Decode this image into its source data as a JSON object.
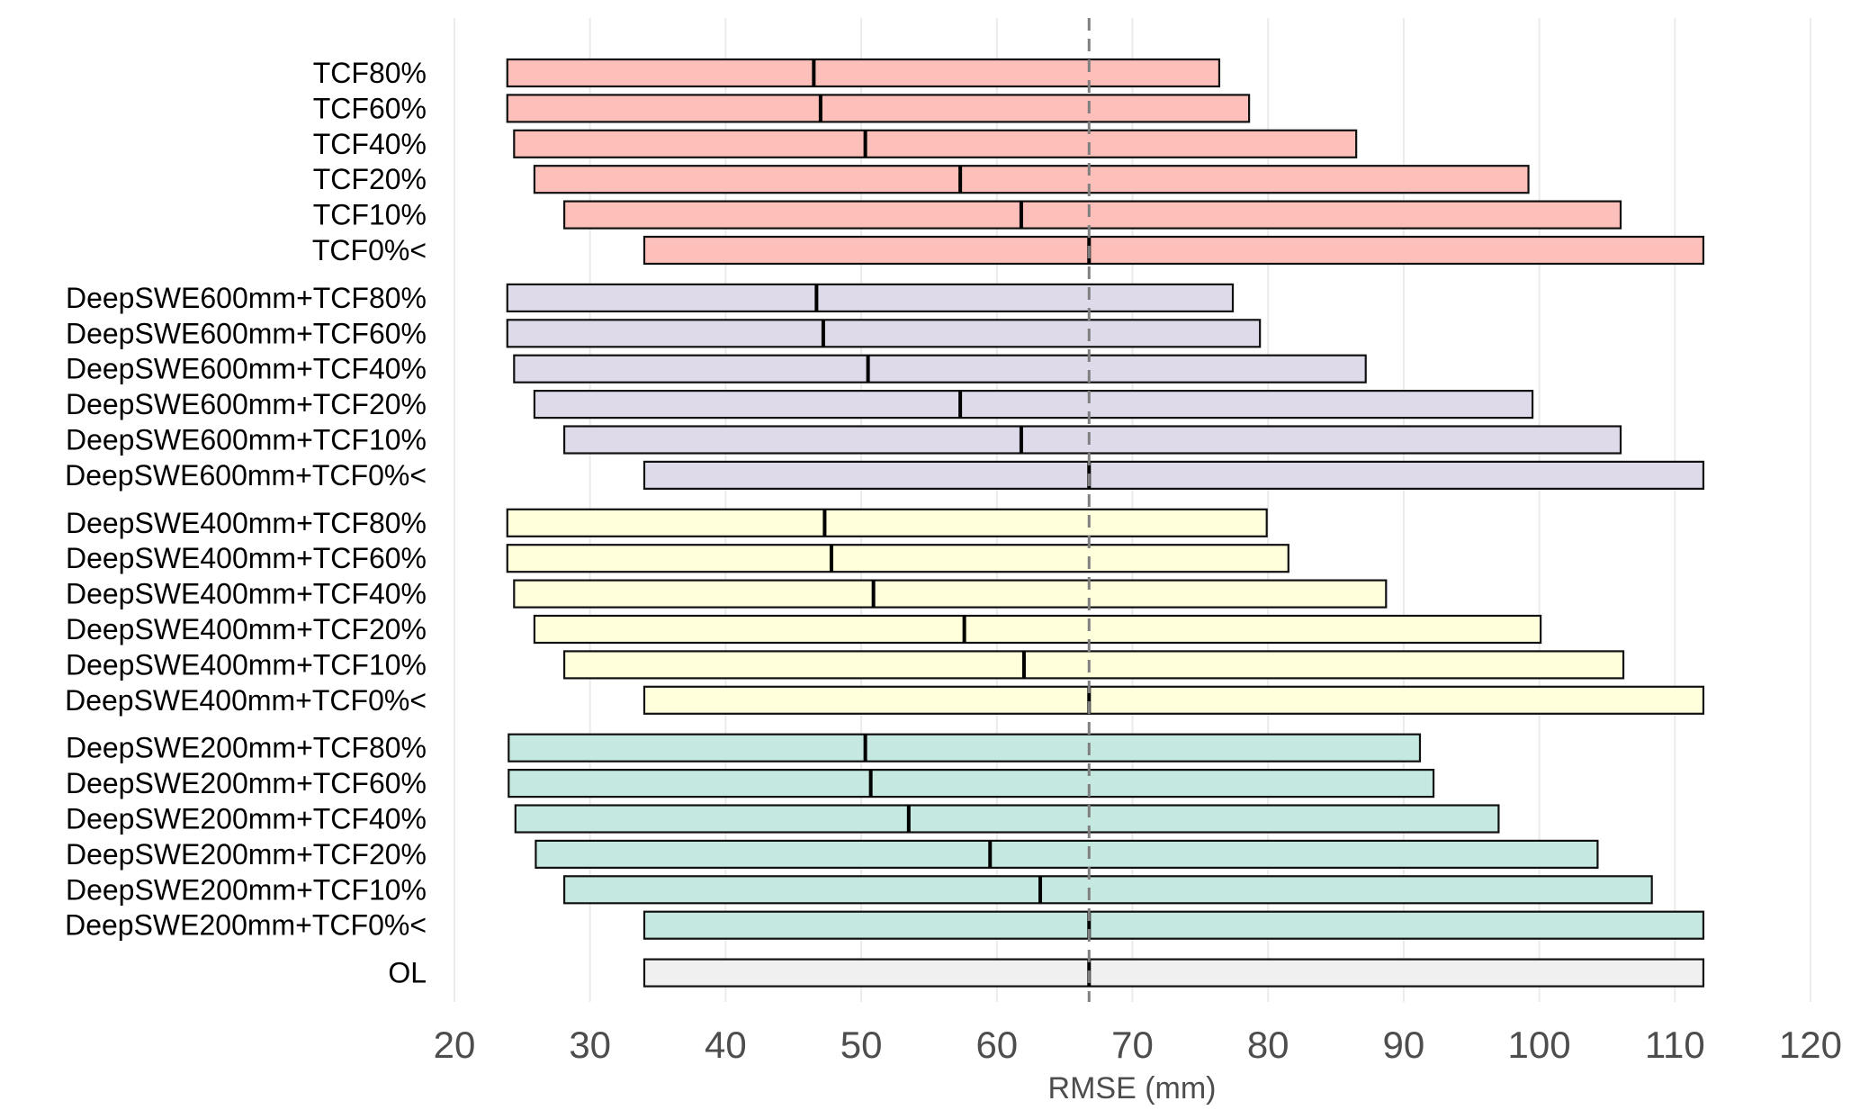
{
  "chart_data": {
    "type": "bar",
    "subtype": "horizontal-range-with-median",
    "title": "",
    "xlabel": "RMSE (mm)",
    "ylabel": "",
    "xlim": [
      20,
      120
    ],
    "xticks": [
      20,
      30,
      40,
      50,
      60,
      70,
      80,
      90,
      100,
      110,
      120
    ],
    "grid": "vertical",
    "reference_line": {
      "x": 66.8,
      "style": "dashed",
      "color": "#7f7f7f"
    },
    "groups": [
      {
        "color": "#FCBFB9",
        "rows": [
          {
            "label": "TCF80%",
            "min": 23.9,
            "median": 46.5,
            "max": 76.4
          },
          {
            "label": "TCF60%",
            "min": 23.9,
            "median": 47.0,
            "max": 78.6
          },
          {
            "label": "TCF40%",
            "min": 24.4,
            "median": 50.3,
            "max": 86.5
          },
          {
            "label": "TCF20%",
            "min": 25.9,
            "median": 57.3,
            "max": 99.2
          },
          {
            "label": "TCF10%",
            "min": 28.1,
            "median": 61.8,
            "max": 106.0
          },
          {
            "label": "TCF0%<",
            "min": 34.0,
            "median": 66.8,
            "max": 112.1
          }
        ]
      },
      {
        "color": "#DEDAEA",
        "rows": [
          {
            "label": "DeepSWE600mm+TCF80%",
            "min": 23.9,
            "median": 46.7,
            "max": 77.4
          },
          {
            "label": "DeepSWE600mm+TCF60%",
            "min": 23.9,
            "median": 47.2,
            "max": 79.4
          },
          {
            "label": "DeepSWE600mm+TCF40%",
            "min": 24.4,
            "median": 50.5,
            "max": 87.2
          },
          {
            "label": "DeepSWE600mm+TCF20%",
            "min": 25.9,
            "median": 57.3,
            "max": 99.5
          },
          {
            "label": "DeepSWE600mm+TCF10%",
            "min": 28.1,
            "median": 61.8,
            "max": 106.0
          },
          {
            "label": "DeepSWE600mm+TCF0%<",
            "min": 34.0,
            "median": 66.8,
            "max": 112.1
          }
        ]
      },
      {
        "color": "#FFFFDC",
        "rows": [
          {
            "label": "DeepSWE400mm+TCF80%",
            "min": 23.9,
            "median": 47.3,
            "max": 79.9
          },
          {
            "label": "DeepSWE400mm+TCF60%",
            "min": 23.9,
            "median": 47.8,
            "max": 81.5
          },
          {
            "label": "DeepSWE400mm+TCF40%",
            "min": 24.4,
            "median": 50.9,
            "max": 88.7
          },
          {
            "label": "DeepSWE400mm+TCF20%",
            "min": 25.9,
            "median": 57.6,
            "max": 100.1
          },
          {
            "label": "DeepSWE400mm+TCF10%",
            "min": 28.1,
            "median": 62.0,
            "max": 106.2
          },
          {
            "label": "DeepSWE400mm+TCF0%<",
            "min": 34.0,
            "median": 66.8,
            "max": 112.1
          }
        ]
      },
      {
        "color": "#C5E8E0",
        "rows": [
          {
            "label": "DeepSWE200mm+TCF80%",
            "min": 24.0,
            "median": 50.3,
            "max": 91.2
          },
          {
            "label": "DeepSWE200mm+TCF60%",
            "min": 24.0,
            "median": 50.7,
            "max": 92.2
          },
          {
            "label": "DeepSWE200mm+TCF40%",
            "min": 24.5,
            "median": 53.5,
            "max": 97.0
          },
          {
            "label": "DeepSWE200mm+TCF20%",
            "min": 26.0,
            "median": 59.5,
            "max": 104.3
          },
          {
            "label": "DeepSWE200mm+TCF10%",
            "min": 28.1,
            "median": 63.2,
            "max": 108.3
          },
          {
            "label": "DeepSWE200mm+TCF0%<",
            "min": 34.0,
            "median": 66.8,
            "max": 112.1
          }
        ]
      },
      {
        "color": "#F0F0F0",
        "rows": [
          {
            "label": "OL",
            "min": 34.0,
            "median": 66.8,
            "max": 112.1
          }
        ]
      }
    ]
  }
}
